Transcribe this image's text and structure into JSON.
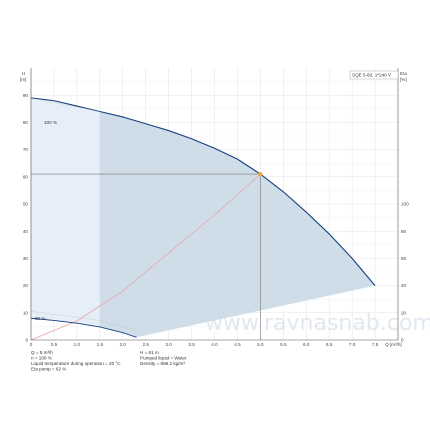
{
  "chart_data": {
    "type": "line",
    "model_label": "SQE 5-60, 1*240 V",
    "y_left_label": {
      "symbol": "H",
      "unit": "[m]"
    },
    "y_right_label": {
      "symbol": "Eta",
      "unit": "[%]"
    },
    "x_label": {
      "symbol": "Q",
      "unit": "[m³/h]"
    },
    "xlim": [
      0,
      8.0
    ],
    "ylim": [
      0,
      100
    ],
    "right_ylim": [
      0,
      200
    ],
    "grid": true,
    "x_ticks": [
      "0",
      "0.5",
      "1.0",
      "1.5",
      "2.0",
      "2.5",
      "3.0",
      "3.5",
      "4.0",
      "4.5",
      "5.0",
      "5.5",
      "6.0",
      "6.5",
      "7.0",
      "7.5",
      "Q [m³/h]"
    ],
    "x_tick_values": [
      0,
      0.5,
      1.0,
      1.5,
      2.0,
      2.5,
      3.0,
      3.5,
      4.0,
      4.5,
      5.0,
      5.5,
      6.0,
      6.5,
      7.0,
      7.5
    ],
    "y_ticks": [
      "0",
      "10",
      "20",
      "30",
      "40",
      "50",
      "60",
      "70",
      "80",
      "90"
    ],
    "y_tick_values": [
      0,
      10,
      20,
      30,
      40,
      50,
      60,
      70,
      80,
      90
    ],
    "right_ticks": [
      "0",
      "20",
      "40",
      "60",
      "80",
      "100"
    ],
    "right_tick_values": [
      0,
      20,
      40,
      60,
      80,
      100
    ],
    "series": [
      {
        "name": "100 %",
        "x": [
          0,
          0.5,
          1.0,
          1.5,
          2.0,
          2.5,
          3.0,
          3.5,
          4.0,
          4.5,
          5.0,
          5.5,
          6.0,
          6.5,
          7.0,
          7.5
        ],
        "y": [
          89,
          88,
          86,
          84,
          82,
          79.5,
          77,
          74,
          70.5,
          66.5,
          61,
          54.5,
          47,
          39,
          30,
          20
        ]
      },
      {
        "name": "30 %",
        "x": [
          0,
          0.5,
          1.0,
          1.5,
          2.0,
          2.3
        ],
        "y": [
          8,
          7.2,
          6.2,
          4.8,
          2.7,
          1
        ]
      }
    ],
    "system_curve": {
      "x": [
        0,
        1,
        2,
        3,
        4,
        5
      ],
      "y": [
        0,
        7,
        18,
        32,
        46,
        61
      ]
    },
    "duty_point": {
      "x": 5.0,
      "y": 61
    },
    "info_lines": [
      "Q = 5 m³/h",
      "n = 100 %",
      "Liquid temperature during operation = 20 °C",
      "Eta pump = 62 %",
      "H = 61 m",
      "Pumped liquid = Water",
      "Density = 998.2 kg/m³"
    ]
  }
}
